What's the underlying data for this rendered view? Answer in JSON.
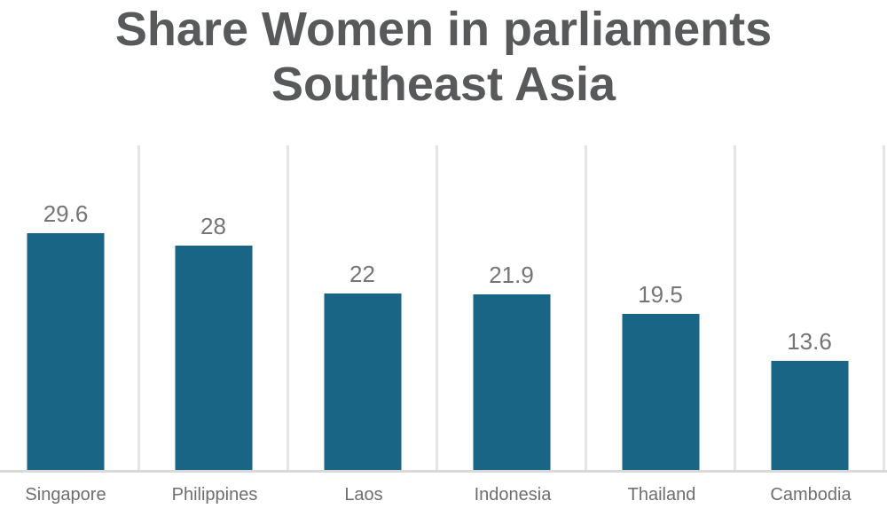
{
  "page": {
    "background": "#ffffff"
  },
  "chart_data": {
    "type": "bar",
    "title": "Share Women in parliaments Southeast Asia",
    "title_lines": [
      "Share Women in parliaments",
      "Southeast Asia"
    ],
    "categories": [
      "Singapore",
      "Philippines",
      "Laos",
      "Indonesia",
      "Thailand",
      "Cambodia"
    ],
    "values": [
      29.6,
      28,
      22,
      21.9,
      19.5,
      13.6
    ],
    "xlabel": "",
    "ylabel": "",
    "ylim": [
      0,
      40.5
    ],
    "grid": "vertical-category-separators",
    "legend": "none",
    "value_labels_shown": true,
    "bar_color": "#186585",
    "title_color": "#58595b",
    "value_label_color": "#757575",
    "category_label_color": "#6e6e6e",
    "gridline_color": "#e4e4e4",
    "axis_line_color": "#d9d9d9"
  }
}
